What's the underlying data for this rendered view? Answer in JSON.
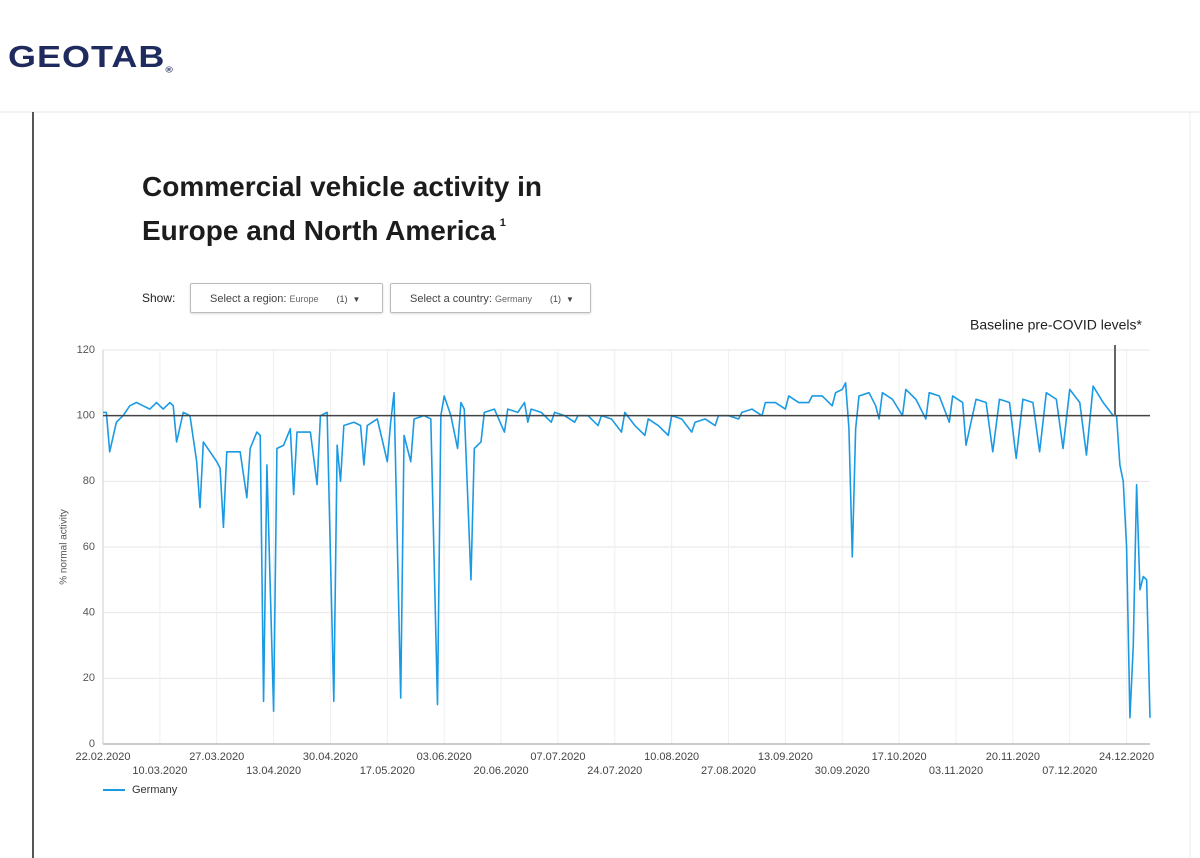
{
  "logo": "GEOTAB",
  "logo_mark": "®",
  "controls": {
    "label": "Show:",
    "items": [
      {
        "label": "Select a region:",
        "value": "Europe",
        "count": "(1)"
      },
      {
        "label": "Select a country:",
        "value": "Germany",
        "count": "(1)"
      }
    ]
  },
  "chart_data": {
    "type": "line",
    "title": "Commercial vehicle activity in Europe and North America",
    "title_note": "1",
    "y_label": "% normal activity",
    "baseline": {
      "value": 100,
      "label": "Baseline pre-COVID levels*"
    },
    "ylim": [
      0,
      120
    ],
    "yticks": [
      0,
      20,
      40,
      60,
      80,
      100,
      120
    ],
    "xlim": [
      "22.02.2020",
      "31.12.2020"
    ],
    "xticks": [
      "22.02.2020",
      "10.03.2020",
      "27.03.2020",
      "13.04.2020",
      "30.04.2020",
      "17.05.2020",
      "03.06.2020",
      "20.06.2020",
      "07.07.2020",
      "24.07.2020",
      "10.08.2020",
      "27.08.2020",
      "13.09.2020",
      "30.09.2020",
      "17.10.2020",
      "03.11.2020",
      "20.11.2020",
      "07.12.2020",
      "24.12.2020"
    ],
    "grid": true,
    "legend": "bottom-left",
    "x": [
      "22.02.2020",
      "23.02.2020",
      "24.02.2020",
      "26.02.2020",
      "28.02.2020",
      "01.03.2020",
      "03.03.2020",
      "05.03.2020",
      "07.03.2020",
      "09.03.2020",
      "11.03.2020",
      "13.03.2020",
      "14.03.2020",
      "15.03.2020",
      "17.03.2020",
      "19.03.2020",
      "21.03.2020",
      "22.03.2020",
      "23.03.2020",
      "25.03.2020",
      "27.03.2020",
      "28.03.2020",
      "29.03.2020",
      "30.03.2020",
      "01.04.2020",
      "03.04.2020",
      "05.04.2020",
      "06.04.2020",
      "08.04.2020",
      "09.04.2020",
      "10.04.2020",
      "11.04.2020",
      "13.04.2020",
      "14.04.2020",
      "16.04.2020",
      "18.04.2020",
      "19.04.2020",
      "20.04.2020",
      "24.04.2020",
      "26.04.2020",
      "27.04.2020",
      "29.04.2020",
      "01.05.2020",
      "02.05.2020",
      "03.05.2020",
      "04.05.2020",
      "07.05.2020",
      "09.05.2020",
      "10.05.2020",
      "11.05.2020",
      "14.05.2020",
      "17.05.2020",
      "18.05.2020",
      "19.05.2020",
      "21.05.2020",
      "22.05.2020",
      "24.05.2020",
      "25.05.2020",
      "28.05.2020",
      "30.05.2020",
      "01.06.2020",
      "02.06.2020",
      "03.06.2020",
      "05.06.2020",
      "07.06.2020",
      "08.06.2020",
      "09.06.2020",
      "11.06.2020",
      "12.06.2020",
      "14.06.2020",
      "15.06.2020",
      "18.06.2020",
      "21.06.2020",
      "22.06.2020",
      "25.06.2020",
      "27.06.2020",
      "28.06.2020",
      "29.06.2020",
      "02.07.2020",
      "05.07.2020",
      "06.07.2020",
      "09.07.2020",
      "12.07.2020",
      "13.07.2020",
      "16.07.2020",
      "19.07.2020",
      "20.07.2020",
      "23.07.2020",
      "26.07.2020",
      "27.07.2020",
      "30.07.2020",
      "02.08.2020",
      "03.08.2020",
      "06.08.2020",
      "09.08.2020",
      "10.08.2020",
      "13.08.2020",
      "16.08.2020",
      "17.08.2020",
      "20.08.2020",
      "23.08.2020",
      "24.08.2020",
      "27.08.2020",
      "30.08.2020",
      "31.08.2020",
      "03.09.2020",
      "06.09.2020",
      "07.09.2020",
      "10.09.2020",
      "13.09.2020",
      "14.09.2020",
      "17.09.2020",
      "20.09.2020",
      "21.09.2020",
      "24.09.2020",
      "27.09.2020",
      "28.09.2020",
      "30.09.2020",
      "01.10.2020",
      "02.10.2020",
      "03.10.2020",
      "04.10.2020",
      "05.10.2020",
      "08.10.2020",
      "10.10.2020",
      "11.10.2020",
      "12.10.2020",
      "15.10.2020",
      "18.10.2020",
      "19.10.2020",
      "22.10.2020",
      "25.10.2020",
      "26.10.2020",
      "29.10.2020",
      "01.11.2020",
      "02.11.2020",
      "05.11.2020",
      "06.11.2020",
      "09.11.2020",
      "12.11.2020",
      "14.11.2020",
      "16.11.2020",
      "19.11.2020",
      "21.11.2020",
      "23.11.2020",
      "26.11.2020",
      "28.11.2020",
      "30.11.2020",
      "03.12.2020",
      "05.12.2020",
      "07.12.2020",
      "10.12.2020",
      "12.12.2020",
      "14.12.2020",
      "17.12.2020",
      "20.12.2020",
      "21.12.2020",
      "22.12.2020",
      "23.12.2020",
      "24.12.2020",
      "25.12.2020",
      "26.12.2020",
      "27.12.2020",
      "28.12.2020",
      "29.12.2020",
      "30.12.2020",
      "31.12.2020"
    ],
    "series": [
      {
        "name": "Germany",
        "color": "#1b9ae4",
        "values": [
          101,
          101,
          89,
          98,
          100,
          103,
          104,
          103,
          102,
          104,
          102,
          104,
          103,
          92,
          101,
          100,
          86,
          72,
          92,
          89,
          86,
          84,
          66,
          89,
          89,
          89,
          75,
          90,
          95,
          94,
          13,
          85,
          10,
          90,
          91,
          96,
          76,
          95,
          95,
          79,
          100,
          101,
          13,
          91,
          80,
          97,
          98,
          97,
          85,
          97,
          99,
          86,
          98,
          107,
          14,
          94,
          86,
          99,
          100,
          99,
          12,
          100,
          106,
          100,
          90,
          104,
          102,
          50,
          90,
          92,
          101,
          102,
          95,
          102,
          101,
          104,
          98,
          102,
          101,
          98,
          101,
          100,
          98,
          100,
          100,
          97,
          100,
          99,
          95,
          101,
          97,
          94,
          99,
          97,
          94,
          100,
          99,
          95,
          98,
          99,
          97,
          100,
          100,
          99,
          101,
          102,
          100,
          104,
          104,
          102,
          106,
          104,
          104,
          106,
          106,
          103,
          107,
          108,
          110,
          96,
          57,
          96,
          106,
          107,
          103,
          99,
          107,
          105,
          100,
          108,
          105,
          99,
          107,
          106,
          98,
          106,
          104,
          91,
          105,
          104,
          89,
          105,
          104,
          87,
          105,
          104,
          89,
          107,
          105,
          90,
          108,
          104,
          88,
          109,
          104,
          100,
          100,
          85,
          80,
          60,
          8,
          30,
          79,
          47,
          51,
          50,
          8
        ]
      }
    ]
  }
}
